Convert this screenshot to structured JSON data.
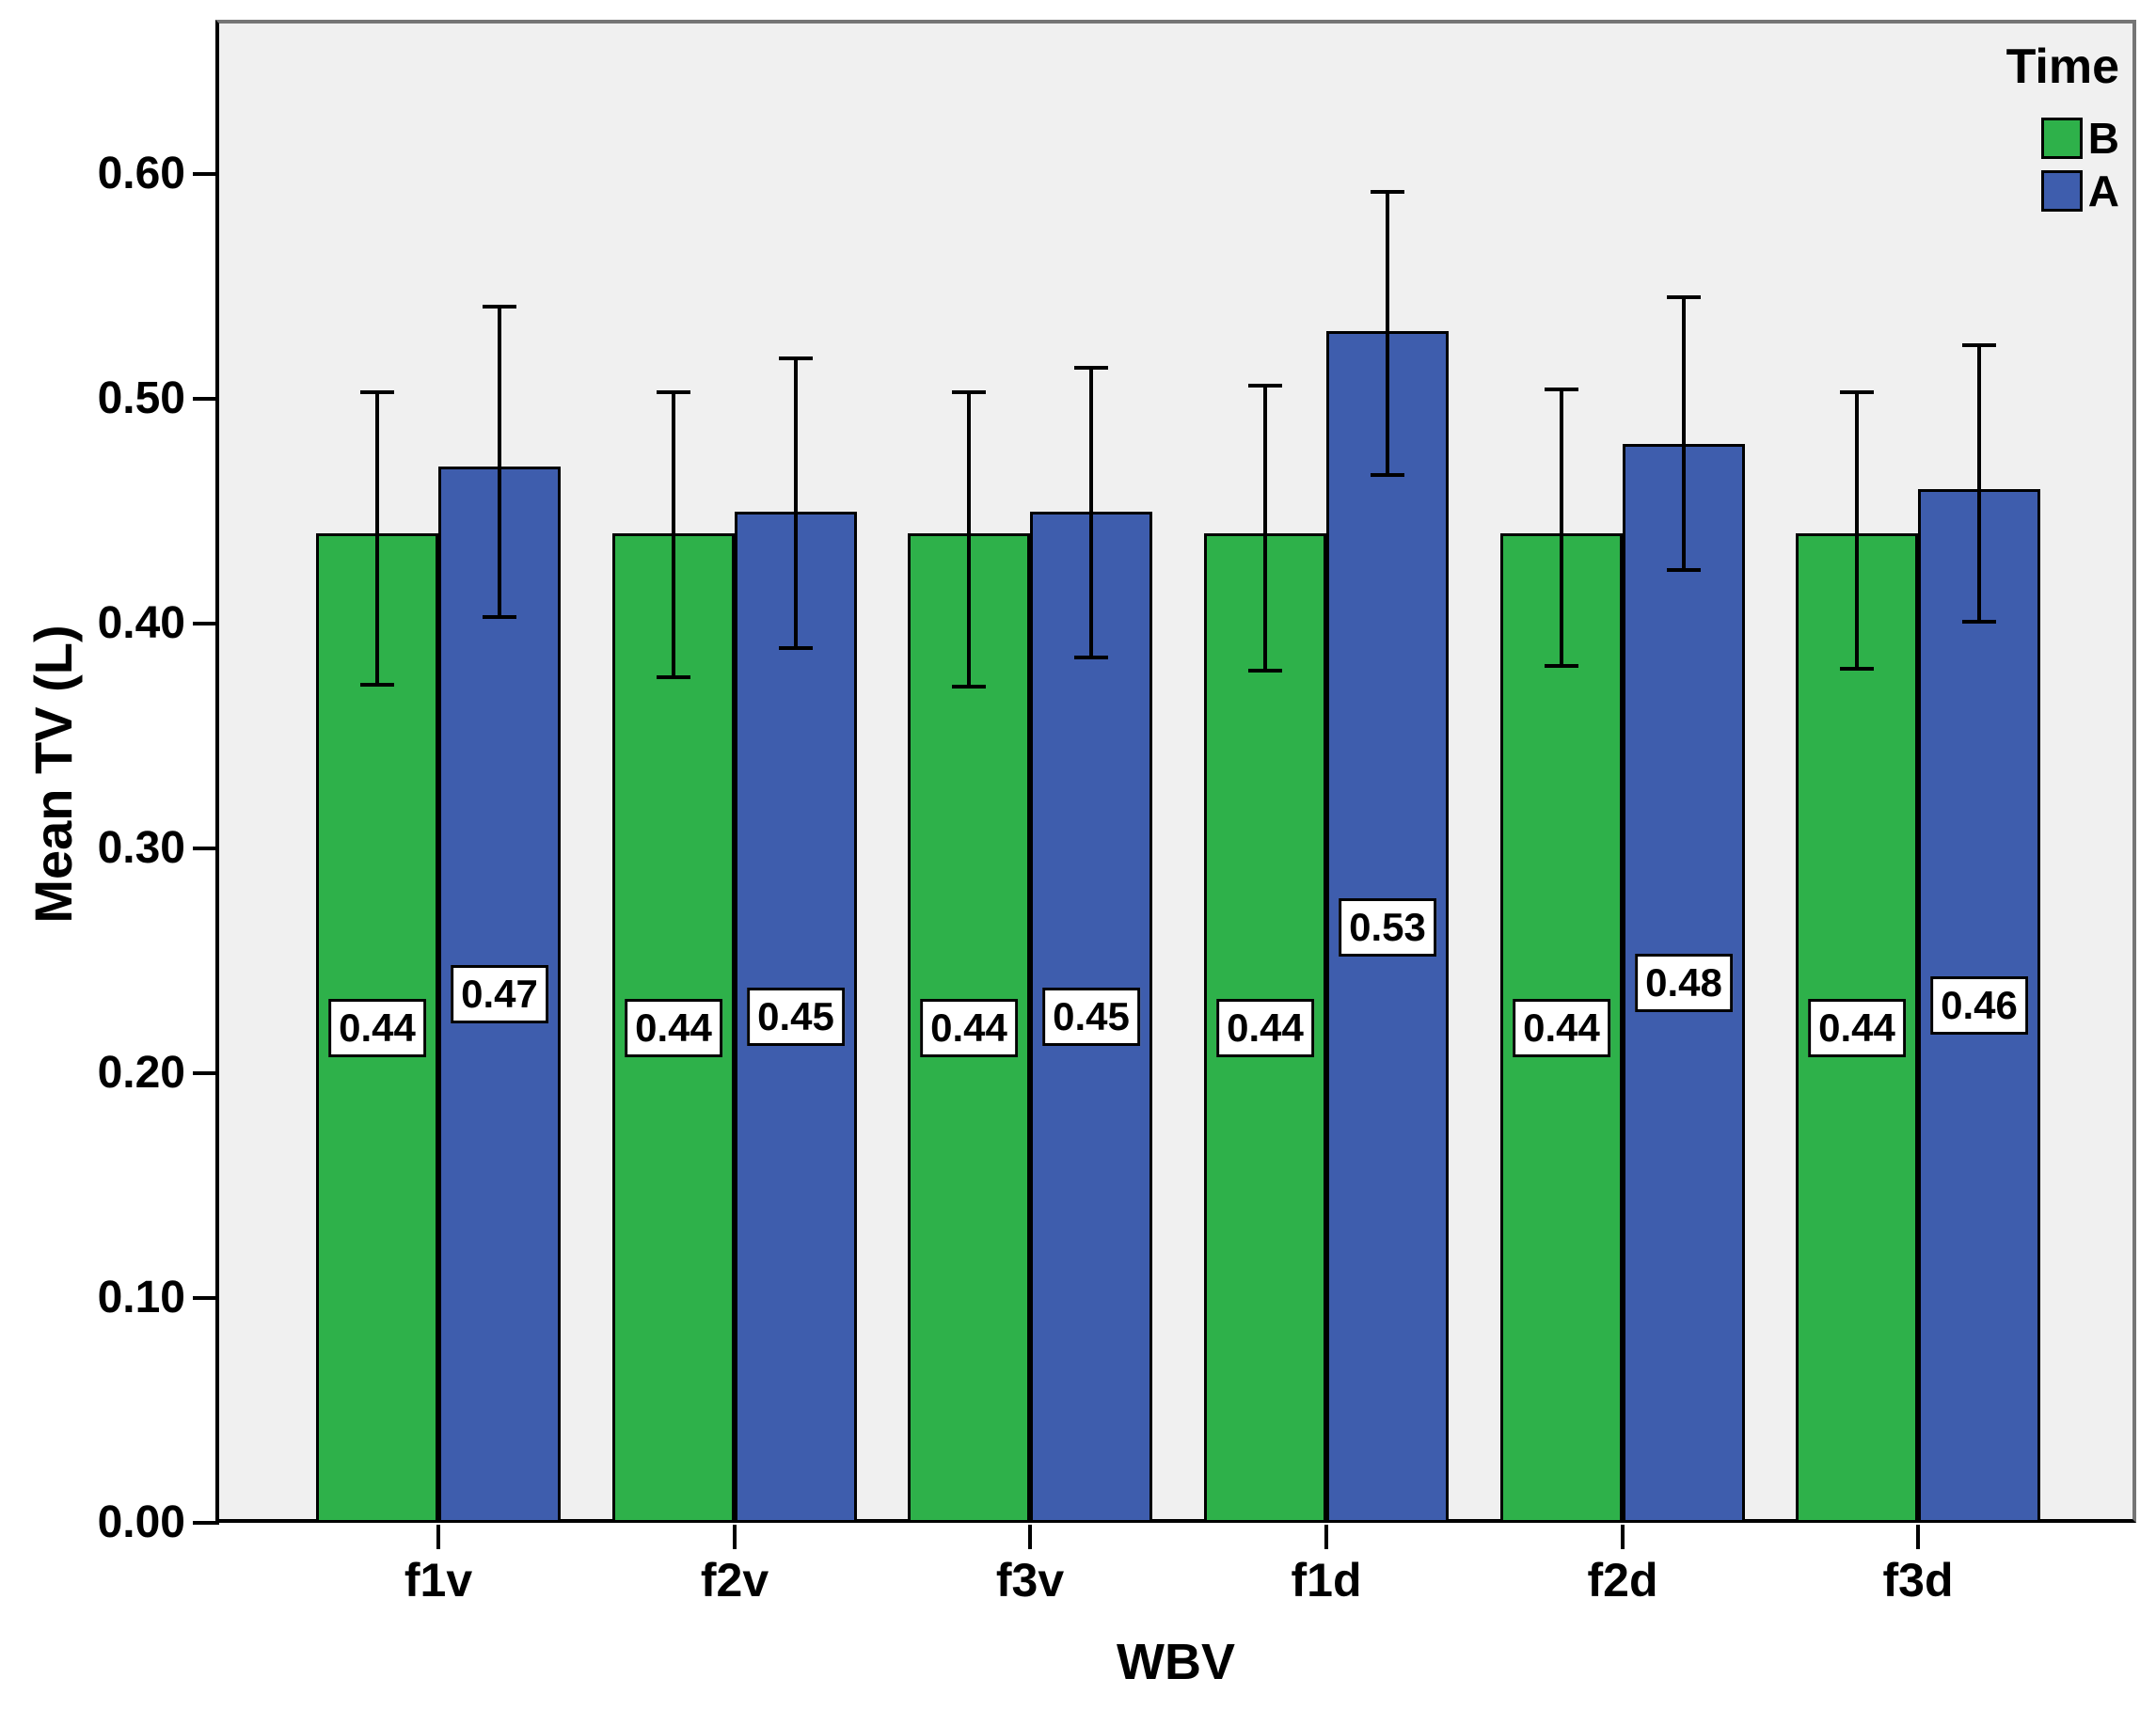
{
  "chart_data": {
    "type": "bar",
    "title": "",
    "xlabel": "WBV",
    "ylabel": "Mean TV (L)",
    "categories": [
      "f1v",
      "f2v",
      "f3v",
      "f1d",
      "f2d",
      "f3d"
    ],
    "series": [
      {
        "name": "B",
        "color": "#2EB14A",
        "values": [
          0.44,
          0.44,
          0.44,
          0.44,
          0.44,
          0.44
        ],
        "value_labels": [
          "0.44",
          "0.44",
          "0.44",
          "0.44",
          "0.44",
          "0.44"
        ],
        "error_low": [
          0.373,
          0.376,
          0.372,
          0.379,
          0.381,
          0.38
        ],
        "error_high": [
          0.503,
          0.503,
          0.503,
          0.506,
          0.504,
          0.503
        ]
      },
      {
        "name": "A",
        "color": "#3E5DAD",
        "values": [
          0.47,
          0.45,
          0.45,
          0.53,
          0.48,
          0.46
        ],
        "value_labels": [
          "0.47",
          "0.45",
          "0.45",
          "0.53",
          "0.48",
          "0.46"
        ],
        "error_low": [
          0.403,
          0.389,
          0.385,
          0.466,
          0.424,
          0.401
        ],
        "error_high": [
          0.541,
          0.518,
          0.514,
          0.592,
          0.545,
          0.524
        ]
      }
    ],
    "y_ticks": [
      "0.00",
      "0.10",
      "0.20",
      "0.30",
      "0.40",
      "0.50",
      "0.60"
    ],
    "y_tick_values": [
      0.0,
      0.1,
      0.2,
      0.3,
      0.4,
      0.5,
      0.6
    ],
    "ylim": [
      0,
      0.667
    ],
    "grid": false,
    "plot_background": "#F0F0F0",
    "error_bar_color": "#000000",
    "legend": {
      "title": "Time",
      "position": "top-right-inside",
      "entries": [
        {
          "label": "B",
          "color": "#2EB14A"
        },
        {
          "label": "A",
          "color": "#3E5DAD"
        }
      ]
    }
  }
}
